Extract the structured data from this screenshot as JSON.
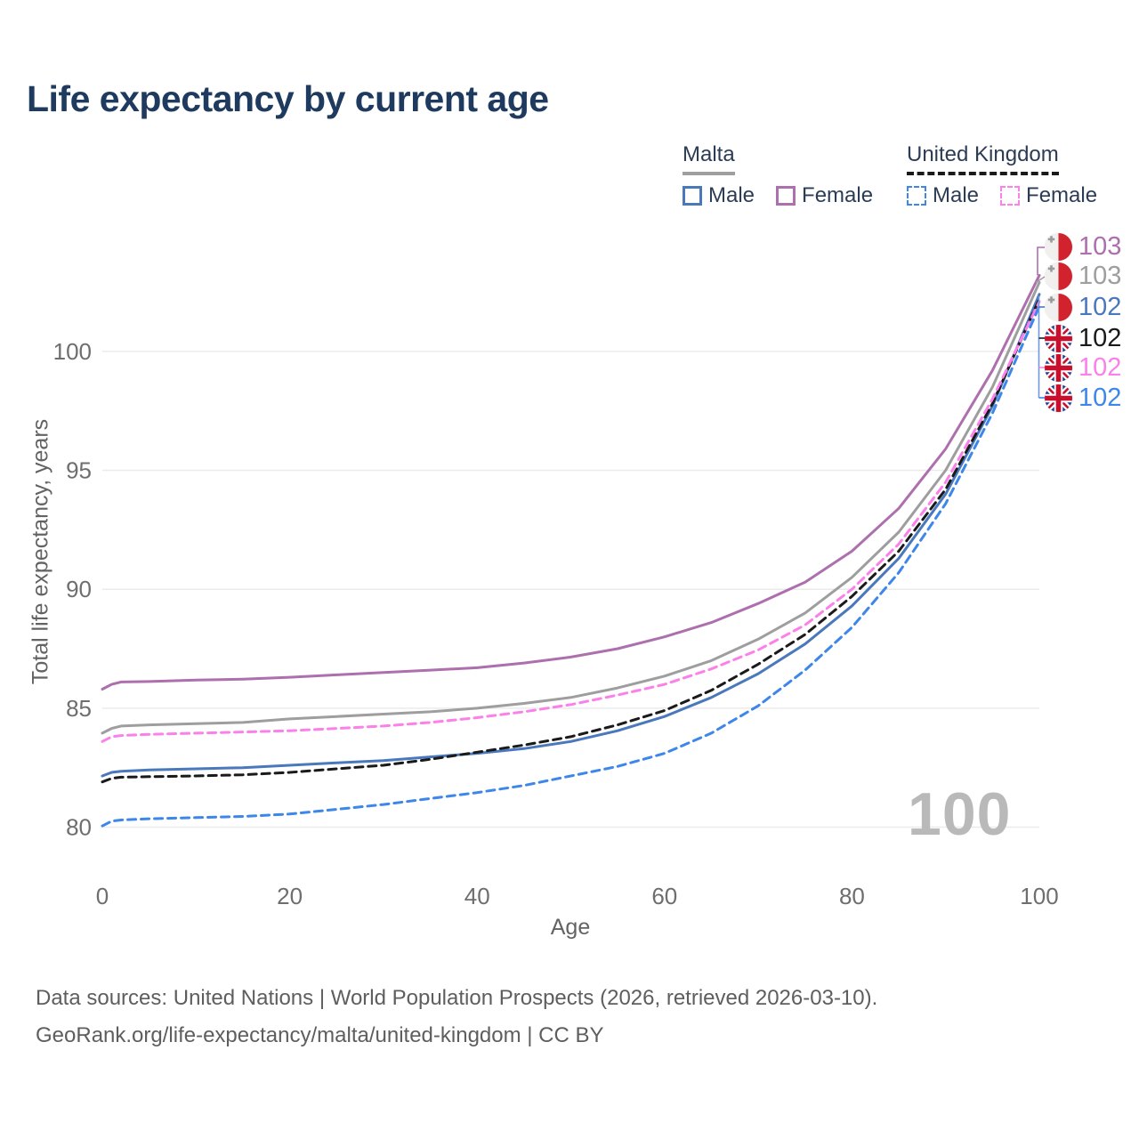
{
  "title": "Life expectancy by current age",
  "legend": {
    "groups": [
      {
        "name": "Malta",
        "line_style": "solid",
        "underline_color": "#9e9e9e",
        "items": [
          {
            "label": "Male",
            "color": "#4a78bc",
            "swatch_style": "solid"
          },
          {
            "label": "Female",
            "color": "#ad6fad",
            "swatch_style": "solid"
          }
        ]
      },
      {
        "name": "United Kingdom",
        "line_style": "dashed",
        "underline_color": "#1a1a1a",
        "items": [
          {
            "label": "Male",
            "color": "#3d86ea",
            "swatch_style": "dashed"
          },
          {
            "label": "Female",
            "color": "#fb80ea",
            "swatch_style": "dashed"
          }
        ]
      }
    ]
  },
  "watermark": "100",
  "end_labels": [
    {
      "value": "103",
      "color": "#ad6fad",
      "flag": "malta",
      "series_id": "malta-female"
    },
    {
      "value": "103",
      "color": "#9e9e9e",
      "flag": "malta",
      "series_id": "malta-all"
    },
    {
      "value": "102",
      "color": "#4a78bc",
      "flag": "malta",
      "series_id": "malta-male"
    },
    {
      "value": "102",
      "color": "#1a1a1a",
      "flag": "uk",
      "series_id": "uk-all"
    },
    {
      "value": "102",
      "color": "#fb80ea",
      "flag": "uk",
      "series_id": "uk-female"
    },
    {
      "value": "102",
      "color": "#3d86ea",
      "flag": "uk",
      "series_id": "uk-male"
    }
  ],
  "chart_data": {
    "type": "line",
    "title": "Life expectancy by current age",
    "xlabel": "Age",
    "ylabel": "Total life expectancy, years",
    "xlim": [
      0,
      100
    ],
    "ylim": [
      79.5,
      104.5
    ],
    "xticks": [
      0,
      20,
      40,
      60,
      80,
      100
    ],
    "yticks": [
      80,
      85,
      90,
      95,
      100
    ],
    "grid": true,
    "legend_position": "top-right",
    "highlighted_age": "100",
    "ages": [
      0,
      1,
      2,
      5,
      10,
      15,
      20,
      25,
      30,
      35,
      40,
      45,
      50,
      55,
      60,
      65,
      70,
      75,
      80,
      85,
      90,
      95,
      100
    ],
    "series": [
      {
        "id": "malta-female",
        "country": "Malta",
        "sex": "Female",
        "color": "#ad6fad",
        "dash": "solid",
        "values": [
          85.8,
          86.0,
          86.1,
          86.12,
          86.18,
          86.22,
          86.3,
          86.4,
          86.5,
          86.6,
          86.7,
          86.9,
          87.15,
          87.5,
          88.0,
          88.6,
          89.4,
          90.3,
          91.6,
          93.4,
          95.9,
          99.2,
          103.2
        ]
      },
      {
        "id": "malta-all",
        "country": "Malta",
        "sex": "All",
        "color": "#9e9e9e",
        "dash": "solid",
        "values": [
          83.95,
          84.15,
          84.25,
          84.3,
          84.35,
          84.4,
          84.55,
          84.65,
          84.75,
          84.85,
          85.0,
          85.2,
          85.45,
          85.85,
          86.35,
          87.0,
          87.9,
          89.0,
          90.5,
          92.4,
          95.0,
          98.5,
          102.9
        ]
      },
      {
        "id": "malta-male",
        "country": "Malta",
        "sex": "Male",
        "color": "#4a78bc",
        "dash": "solid",
        "values": [
          82.15,
          82.3,
          82.35,
          82.4,
          82.45,
          82.5,
          82.6,
          82.7,
          82.8,
          82.95,
          83.1,
          83.3,
          83.6,
          84.05,
          84.65,
          85.45,
          86.45,
          87.7,
          89.3,
          91.3,
          94.0,
          97.7,
          102.4
        ]
      },
      {
        "id": "uk-all",
        "country": "United Kingdom",
        "sex": "All",
        "color": "#1a1a1a",
        "dash": "dashed",
        "values": [
          81.9,
          82.05,
          82.1,
          82.12,
          82.15,
          82.2,
          82.3,
          82.45,
          82.6,
          82.85,
          83.15,
          83.45,
          83.8,
          84.3,
          84.9,
          85.75,
          86.85,
          88.1,
          89.7,
          91.6,
          94.2,
          97.8,
          102.2
        ]
      },
      {
        "id": "uk-female",
        "country": "United Kingdom",
        "sex": "Female",
        "color": "#fb80ea",
        "dash": "dashed",
        "values": [
          83.6,
          83.8,
          83.85,
          83.9,
          83.95,
          84.0,
          84.05,
          84.15,
          84.25,
          84.4,
          84.6,
          84.85,
          85.15,
          85.55,
          86.0,
          86.65,
          87.45,
          88.5,
          90.0,
          91.9,
          94.5,
          98.0,
          102.1
        ]
      },
      {
        "id": "uk-male",
        "country": "United Kingdom",
        "sex": "Male",
        "color": "#3d86ea",
        "dash": "dashed",
        "values": [
          80.05,
          80.25,
          80.3,
          80.35,
          80.4,
          80.45,
          80.55,
          80.75,
          80.95,
          81.2,
          81.45,
          81.75,
          82.15,
          82.55,
          83.1,
          83.95,
          85.1,
          86.6,
          88.4,
          90.7,
          93.6,
          97.4,
          101.9
        ]
      }
    ]
  },
  "footer": {
    "line1": "Data sources: United Nations | World Population Prospects (2026, retrieved 2026-03-10).",
    "line2": "GeoRank.org/life-expectancy/malta/united-kingdom | CC BY"
  }
}
